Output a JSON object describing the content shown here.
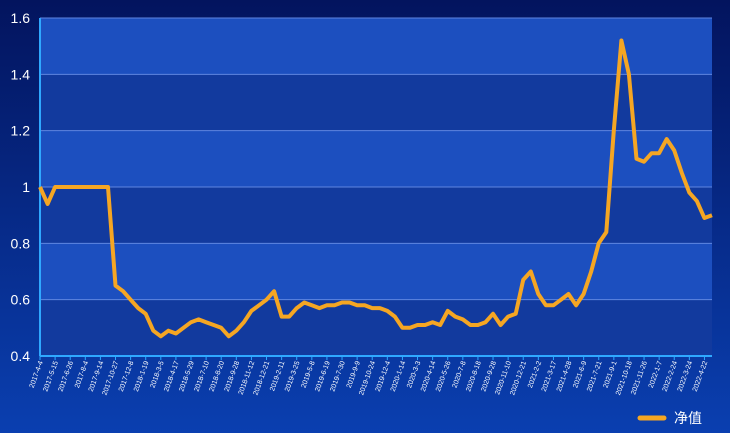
{
  "chart_data": {
    "type": "line",
    "categories": [
      "2017-4-4",
      null,
      "2017-5-15",
      null,
      "2017-6-26",
      null,
      "2017-8-4",
      null,
      "2017-9-14",
      null,
      "2017-10-27",
      null,
      "2017-12-8",
      null,
      "2018-1-19",
      null,
      "2018-3-5",
      null,
      "2018-4-17",
      null,
      "2018-5-29",
      null,
      "2018-7-10",
      null,
      "2018-8-20",
      null,
      "2018-9-28",
      null,
      "2018-11-12",
      null,
      "2018-12-21",
      null,
      "2019-2-11",
      null,
      "2019-3-25",
      null,
      "2019-5-8",
      null,
      "2019-6-19",
      null,
      "2019-7-30",
      null,
      "2019-9-9",
      null,
      "2019-10-24",
      null,
      "2019-12-4",
      null,
      "2020-1-14",
      null,
      "2020-3-3",
      null,
      "2020-4-14",
      null,
      "2020-5-26",
      null,
      "2020-7-8",
      null,
      "2020-8-18",
      null,
      "2020-9-28",
      null,
      "2020-11-10",
      null,
      "2020-12-21",
      null,
      "2021-2-2",
      null,
      "2021-3-17",
      null,
      "2021-4-28",
      null,
      "2021-6-9",
      null,
      "2021-7-21",
      null,
      "2021-9-1",
      null,
      "2021-10-18",
      null,
      "2021-11-26",
      null,
      "2022-1-7",
      null,
      "2022-2-24",
      null,
      "2022-3-24",
      null,
      "2022-4-22",
      null
    ],
    "series": [
      {
        "name": "净值",
        "color": "#f5a623",
        "values": [
          1.0,
          0.94,
          1.0,
          1.0,
          1.0,
          1.0,
          1.0,
          1.0,
          1.0,
          1.0,
          0.65,
          0.63,
          0.6,
          0.57,
          0.55,
          0.49,
          0.47,
          0.49,
          0.48,
          0.5,
          0.52,
          0.53,
          0.52,
          0.51,
          0.5,
          0.47,
          0.49,
          0.52,
          0.56,
          0.58,
          0.6,
          0.63,
          0.54,
          0.54,
          0.57,
          0.59,
          0.58,
          0.57,
          0.58,
          0.58,
          0.59,
          0.59,
          0.58,
          0.58,
          0.57,
          0.57,
          0.56,
          0.54,
          0.5,
          0.5,
          0.51,
          0.51,
          0.52,
          0.51,
          0.56,
          0.54,
          0.53,
          0.51,
          0.51,
          0.52,
          0.55,
          0.51,
          0.54,
          0.55,
          0.67,
          0.7,
          0.62,
          0.58,
          0.58,
          0.6,
          0.62,
          0.58,
          0.62,
          0.7,
          0.8,
          0.84,
          1.2,
          1.52,
          1.4,
          1.1,
          1.09,
          1.12,
          1.12,
          1.17,
          1.13,
          1.05,
          0.98,
          0.95,
          0.89,
          0.9
        ]
      }
    ],
    "ylim": [
      0.4,
      1.6
    ],
    "yticks": [
      0.4,
      0.6,
      0.8,
      1,
      1.2,
      1.4,
      1.6
    ],
    "grid": true,
    "legend": "bottom-right"
  }
}
